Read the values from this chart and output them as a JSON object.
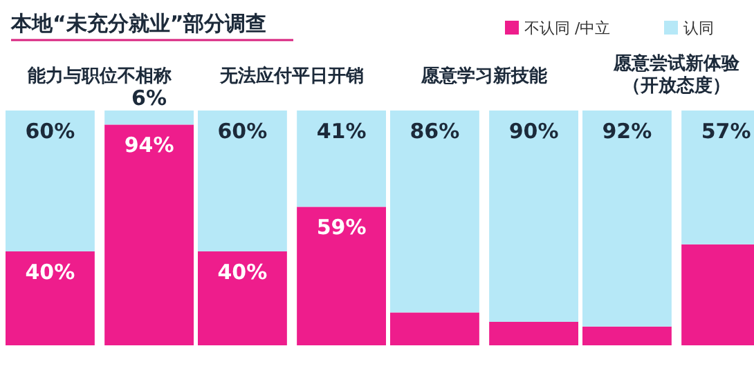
{
  "chart_data": [
    {
      "type": "bar",
      "title": "本地“未充分就业”部分调查",
      "subtitle": "能力与职位不相称",
      "categories": [
        null,
        null
      ],
      "stacked": true,
      "ylim": [
        0,
        100
      ],
      "series": [
        {
          "color": "#ee1d8c",
          "values": [
            40,
            94
          ],
          "value_labels": [
            "40%",
            "94%"
          ]
        },
        {
          "color": "#b6e8f7",
          "values": [
            60,
            6
          ],
          "value_labels": [
            "60%",
            "6%"
          ]
        }
      ]
    },
    {
      "type": "bar",
      "subtitle": "无法应付平日开销",
      "categories": [
        null,
        null
      ],
      "stacked": true,
      "ylim": [
        0,
        100
      ],
      "series": [
        {
          "color": "#ee1d8c",
          "values": [
            40,
            59
          ],
          "value_labels": [
            "40%",
            "59%"
          ]
        },
        {
          "color": "#b6e8f7",
          "values": [
            60,
            41
          ],
          "value_labels": [
            "60%",
            "41%"
          ]
        }
      ]
    },
    {
      "type": "bar",
      "subtitle": "愿意学习新技能",
      "categories": [
        null,
        null
      ],
      "stacked": true,
      "ylim": [
        0,
        100
      ],
      "series": [
        {
          "color": "#ee1d8c",
          "values": [
            14,
            10
          ],
          "value_labels": [
            null,
            null
          ]
        },
        {
          "color": "#b6e8f7",
          "values": [
            86,
            90
          ],
          "value_labels": [
            "86%",
            "90%"
          ]
        }
      ]
    },
    {
      "type": "bar",
      "subtitle": "愿意尝试新体验（开放态度）",
      "categories": [
        null,
        null
      ],
      "stacked": true,
      "ylim": [
        0,
        100
      ],
      "legend": "top",
      "series": [
        {
          "name": "不认同 /中立",
          "color": "#ee1d8c",
          "values": [
            8,
            43
          ],
          "value_labels": [
            null,
            null
          ]
        },
        {
          "name": "认同",
          "color": "#b6e8f7",
          "values": [
            92,
            57
          ],
          "value_labels": [
            "92%",
            "57%"
          ]
        }
      ]
    }
  ]
}
